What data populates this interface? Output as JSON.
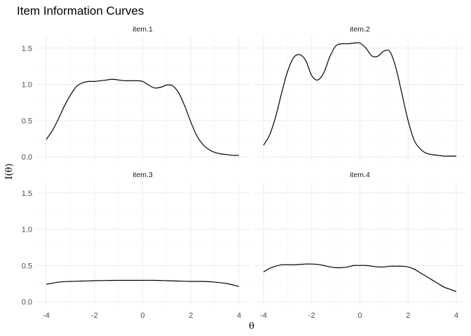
{
  "chart_data": {
    "type": "line",
    "title": "Item Information Curves",
    "xlabel": "θ",
    "ylabel": "I(θ)",
    "xlim": [
      -4,
      4
    ],
    "ylim": [
      0,
      1.65
    ],
    "xticks": [
      -4,
      -2,
      0,
      2,
      4
    ],
    "yticks": [
      0.0,
      0.5,
      1.0,
      1.5
    ],
    "ytick_labels": [
      "0.0",
      "0.5",
      "1.0",
      "1.5"
    ],
    "grid": true,
    "layout": "2x2 facets",
    "panels": [
      {
        "name": "item.1",
        "x": [
          -4.0,
          -3.75,
          -3.5,
          -3.25,
          -3.0,
          -2.75,
          -2.5,
          -2.25,
          -2.0,
          -1.75,
          -1.5,
          -1.25,
          -1.0,
          -0.75,
          -0.5,
          -0.25,
          0.0,
          0.25,
          0.5,
          0.75,
          1.0,
          1.25,
          1.5,
          1.75,
          2.0,
          2.25,
          2.5,
          2.75,
          3.0,
          3.25,
          3.5,
          3.75,
          4.0
        ],
        "y": [
          0.24,
          0.36,
          0.52,
          0.7,
          0.85,
          0.97,
          1.02,
          1.04,
          1.04,
          1.05,
          1.06,
          1.07,
          1.06,
          1.05,
          1.05,
          1.05,
          1.04,
          0.99,
          0.95,
          0.96,
          0.99,
          0.98,
          0.88,
          0.7,
          0.48,
          0.29,
          0.17,
          0.1,
          0.06,
          0.04,
          0.03,
          0.02,
          0.02
        ]
      },
      {
        "name": "item.2",
        "x": [
          -4.0,
          -3.75,
          -3.5,
          -3.25,
          -3.0,
          -2.75,
          -2.5,
          -2.25,
          -2.0,
          -1.75,
          -1.5,
          -1.25,
          -1.0,
          -0.75,
          -0.5,
          -0.25,
          0.0,
          0.25,
          0.5,
          0.75,
          1.0,
          1.25,
          1.5,
          1.75,
          2.0,
          2.25,
          2.5,
          2.75,
          3.0,
          3.25,
          3.5,
          3.75,
          4.0
        ],
        "y": [
          0.16,
          0.3,
          0.55,
          0.88,
          1.18,
          1.37,
          1.41,
          1.33,
          1.12,
          1.06,
          1.16,
          1.38,
          1.53,
          1.56,
          1.56,
          1.57,
          1.57,
          1.5,
          1.39,
          1.39,
          1.46,
          1.45,
          1.22,
          0.86,
          0.5,
          0.23,
          0.11,
          0.05,
          0.03,
          0.02,
          0.01,
          0.01,
          0.01
        ]
      },
      {
        "name": "item.3",
        "x": [
          -4.0,
          -3.5,
          -3.0,
          -2.5,
          -2.0,
          -1.5,
          -1.0,
          -0.5,
          0.0,
          0.5,
          1.0,
          1.5,
          2.0,
          2.5,
          3.0,
          3.5,
          4.0
        ],
        "y": [
          0.24,
          0.27,
          0.28,
          0.285,
          0.29,
          0.293,
          0.295,
          0.295,
          0.295,
          0.295,
          0.29,
          0.285,
          0.28,
          0.28,
          0.27,
          0.25,
          0.21
        ]
      },
      {
        "name": "item.4",
        "x": [
          -4.0,
          -3.75,
          -3.5,
          -3.25,
          -3.0,
          -2.75,
          -2.5,
          -2.25,
          -2.0,
          -1.75,
          -1.5,
          -1.25,
          -1.0,
          -0.75,
          -0.5,
          -0.25,
          0.0,
          0.25,
          0.5,
          0.75,
          1.0,
          1.25,
          1.5,
          1.75,
          2.0,
          2.25,
          2.5,
          2.75,
          3.0,
          3.25,
          3.5,
          3.75,
          4.0
        ],
        "y": [
          0.41,
          0.46,
          0.49,
          0.51,
          0.51,
          0.51,
          0.515,
          0.52,
          0.52,
          0.515,
          0.5,
          0.48,
          0.47,
          0.47,
          0.48,
          0.5,
          0.5,
          0.5,
          0.49,
          0.48,
          0.48,
          0.49,
          0.49,
          0.49,
          0.48,
          0.45,
          0.4,
          0.35,
          0.3,
          0.25,
          0.2,
          0.17,
          0.14
        ]
      }
    ]
  }
}
